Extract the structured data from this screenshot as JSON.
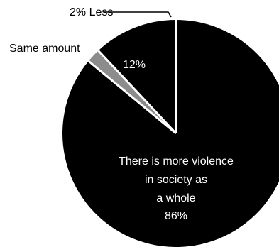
{
  "chart_data": {
    "type": "pie",
    "slices": [
      {
        "value": 86,
        "label_lines": [
          "There is more violence",
          "in society as",
          "a whole",
          "86%"
        ],
        "fill": "#000000"
      },
      {
        "value": 2,
        "label_lines": [
          "2% Less"
        ],
        "fill": "#8c8c8c"
      },
      {
        "value": 12,
        "label_lines": [
          "12%"
        ],
        "outer_label": "Same amount",
        "fill": "#000000"
      }
    ],
    "separator_color": "#ffffff",
    "label_color_inside": "#ffffff",
    "label_color_outside": "#000000"
  }
}
